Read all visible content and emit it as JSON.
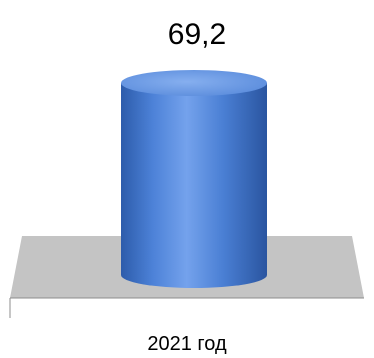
{
  "chart_data": {
    "type": "bar",
    "categories": [
      "2021 год"
    ],
    "series": [
      {
        "values": [
          69.2
        ]
      }
    ],
    "data_labels": [
      "69,2"
    ],
    "title": "",
    "xlabel": "",
    "ylabel": "",
    "ylim": [
      0,
      80
    ],
    "grid": false,
    "legend": "none",
    "bar_shape": "cylinder",
    "three_d": true
  },
  "colors": {
    "bar": "#4a7fd4",
    "bar_dark": "#2a57a6",
    "bar_light": "#7faaf0",
    "floor": "#c4c4c4",
    "axis": "#8c8c8c"
  }
}
